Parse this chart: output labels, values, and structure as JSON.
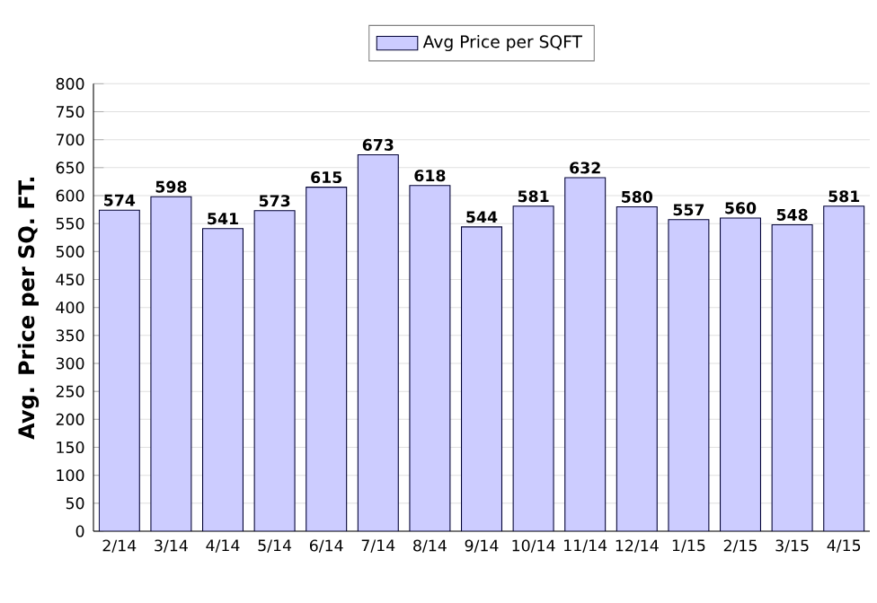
{
  "chart_data": {
    "type": "bar",
    "ylabel": "Avg. Price per SQ. FT.",
    "categories": [
      "2/14",
      "3/14",
      "4/14",
      "5/14",
      "6/14",
      "7/14",
      "8/14",
      "9/14",
      "10/14",
      "11/14",
      "12/14",
      "1/15",
      "2/15",
      "3/15",
      "4/15"
    ],
    "series": [
      {
        "name": "Avg Price per SQFT",
        "color": "#ccccff",
        "values": [
          574,
          598,
          541,
          573,
          615,
          673,
          618,
          544,
          581,
          632,
          580,
          557,
          560,
          548,
          581
        ]
      }
    ],
    "ylim": [
      0,
      800
    ],
    "yticks": [
      0,
      50,
      100,
      150,
      200,
      250,
      300,
      350,
      400,
      450,
      500,
      550,
      600,
      650,
      700,
      750,
      800
    ],
    "grid": "y",
    "legend": "top",
    "data_labels": true
  }
}
